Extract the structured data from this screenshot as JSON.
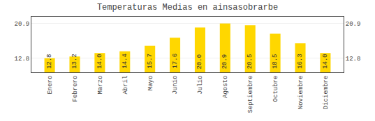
{
  "chart_data": {
    "type": "bar",
    "title": "Temperaturas Medias en ainsasobrarbe",
    "categories": [
      "Enero",
      "Febrero",
      "Marzo",
      "Abril",
      "Mayo",
      "Junio",
      "Julio",
      "Agosto",
      "Septiembre",
      "Octubre",
      "Noviembre",
      "Diciembre"
    ],
    "values": [
      12.8,
      13.2,
      14.0,
      14.4,
      15.7,
      17.6,
      20.0,
      20.9,
      20.5,
      18.5,
      16.3,
      14.0
    ],
    "value_labels": [
      "12.8",
      "13.2",
      "14.0",
      "14.4",
      "15.7",
      "17.6",
      "20.0",
      "20.9",
      "20.5",
      "18.5",
      "16.3",
      "14.0"
    ],
    "data_labels": true,
    "color": "#FFD700",
    "ylim": [
      9.5,
      22.5
    ],
    "yticks": [
      12.8,
      20.9
    ],
    "y2lim": [
      9.5,
      22.5
    ],
    "y2ticks": [
      12.8,
      20.9
    ],
    "grid": true
  }
}
